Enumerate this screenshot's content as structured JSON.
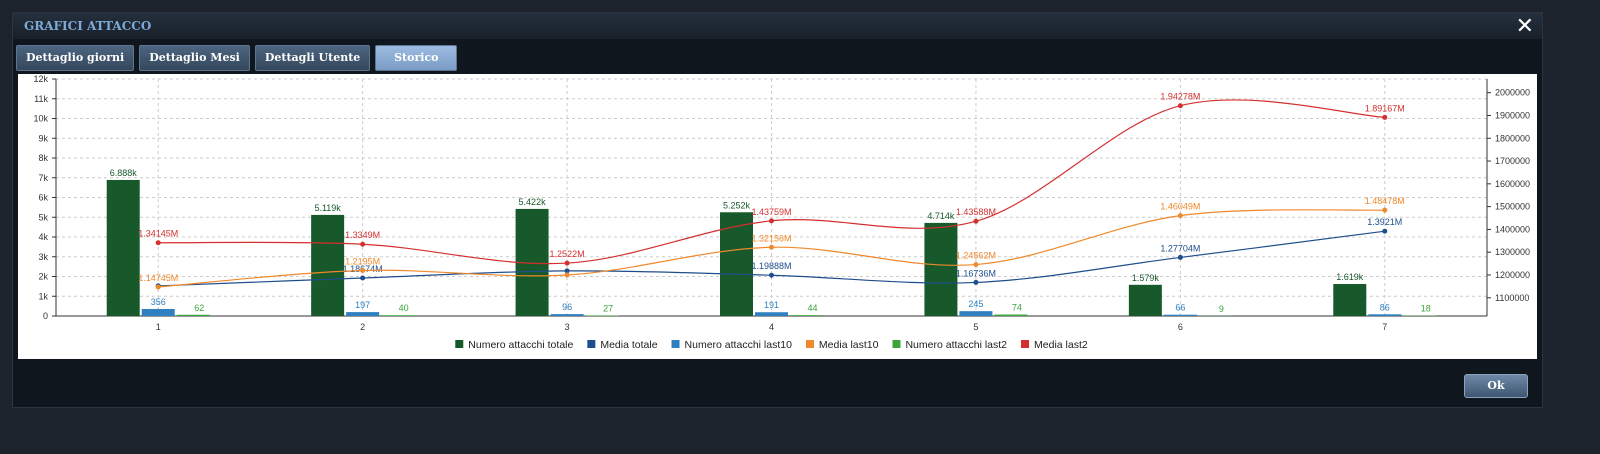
{
  "header": {
    "title": "GRAFICI ATTACCO"
  },
  "tabs": [
    "Dettaglio giorni",
    "Dettaglio Mesi",
    "Dettagli Utente",
    "Storico"
  ],
  "footer": {
    "button": "Ok"
  },
  "chart_data": {
    "type": "bar",
    "categories": [
      "1",
      "2",
      "3",
      "4",
      "5",
      "6",
      "7"
    ],
    "ylim": [
      0,
      12000
    ],
    "yticks": [
      0,
      {
        "value": 1000,
        "label": "1k"
      },
      {
        "value": 2000,
        "label": "2k"
      },
      {
        "value": 3000,
        "label": "3k"
      },
      {
        "value": 4000,
        "label": "4k"
      },
      {
        "value": 5000,
        "label": "5k"
      },
      {
        "value": 6000,
        "label": "6k"
      },
      {
        "value": 7000,
        "label": "7k"
      },
      {
        "value": 8000,
        "label": "8k"
      },
      {
        "value": 9000,
        "label": "9k"
      },
      {
        "value": 10000,
        "label": "10k"
      },
      {
        "value": 11000,
        "label": "11k"
      },
      {
        "value": 12000,
        "label": "12k"
      }
    ],
    "y2lim": [
      1020000,
      2060000
    ],
    "y2ticks": [
      1100000,
      1200000,
      1300000,
      1400000,
      1500000,
      1600000,
      1700000,
      1800000,
      1900000,
      2000000
    ],
    "grid": true,
    "series": [
      {
        "name": "Numero attacchi totale",
        "type": "bar",
        "color": "#17592a",
        "values": [
          6888,
          5119,
          5422,
          5252,
          4714,
          1579,
          1619
        ],
        "value_labels": [
          "6.888k",
          "5.119k",
          "5.422k",
          "5.252k",
          "4.714k",
          "1.579k",
          "1.619k"
        ]
      },
      {
        "name": "Media totale",
        "type": "line",
        "axis": "y2",
        "color": "#1f4e8c",
        "values": [
          1152000,
          1186740,
          1218000,
          1198880,
          1167360,
          1277040,
          1392100
        ],
        "value_labels": [
          null,
          "1.18674M",
          null,
          "1.19888M",
          "1.16736M",
          "1.27704M",
          "1.3921M"
        ]
      },
      {
        "name": "Numero attacchi last10",
        "type": "bar",
        "color": "#2e80c0",
        "values": [
          356,
          197,
          96,
          191,
          245,
          66,
          86
        ]
      },
      {
        "name": "Media last10",
        "type": "line",
        "axis": "y2",
        "color": "#f0892a",
        "values": [
          1147450,
          1219500,
          1200000,
          1321560,
          1245620,
          1460490,
          1484780
        ],
        "value_labels": [
          "1.14745M",
          "1.2195M",
          null,
          "1.32156M",
          "1.24562M",
          "1.46049M",
          "1.48478M"
        ]
      },
      {
        "name": "Numero attacchi last2",
        "type": "bar",
        "color": "#3aa53a",
        "values": [
          62,
          40,
          27,
          44,
          74,
          9,
          18
        ]
      },
      {
        "name": "Media last2",
        "type": "line",
        "axis": "y2",
        "color": "#d42f2f",
        "values": [
          1341450,
          1334900,
          1252200,
          1437590,
          1435880,
          1942780,
          1891670
        ],
        "value_labels": [
          "1.34145M",
          "1.3349M",
          "1.2522M",
          "1.43759M",
          "1.43588M",
          "1.94278M",
          "1.89167M"
        ]
      }
    ]
  }
}
